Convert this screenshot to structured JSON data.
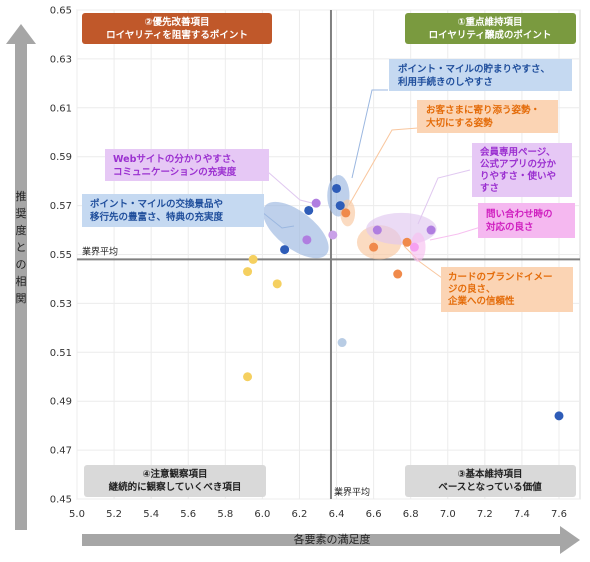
{
  "chart_data": {
    "type": "scatter",
    "xlabel": "各要素の満足度",
    "ylabel": "推奨度との相関",
    "xlim": [
      5.0,
      7.6
    ],
    "ylim": [
      0.45,
      0.65
    ],
    "x_ticks": [
      "5.0",
      "5.2",
      "5.4",
      "5.6",
      "5.8",
      "6.0",
      "6.2",
      "6.4",
      "6.6",
      "6.8",
      "7.0",
      "7.2",
      "7.4",
      "7.6"
    ],
    "y_ticks": [
      "0.45",
      "0.47",
      "0.49",
      "0.51",
      "0.53",
      "0.55",
      "0.57",
      "0.59",
      "0.61",
      "0.63",
      "0.65"
    ],
    "avg_x": 6.37,
    "avg_y": 0.548,
    "avg_label_h": "業界平均",
    "avg_label_v": "業界平均",
    "quadrants": [
      {
        "key": "q2",
        "line1": "②優先改善項目",
        "line2": "ロイヤリティを阻害するポイント",
        "color": "#c0582a",
        "text_color": "#ffffff"
      },
      {
        "key": "q1",
        "line1": "①重点維持項目",
        "line2": "ロイヤリティ醸成のポイント",
        "color": "#7a9a3f",
        "text_color": "#ffffff"
      },
      {
        "key": "q4",
        "line1": "④注意観察項目",
        "line2": "継続的に観察していくべき項目",
        "color": "#d9d9d9",
        "text_color": "#222222"
      },
      {
        "key": "q3",
        "line1": "③基本維持項目",
        "line2": "ベースとなっている価値",
        "color": "#d9d9d9",
        "text_color": "#222222"
      }
    ],
    "annotations": [
      {
        "key": "point-mile-save",
        "lines": [
          "ポイント・マイルの貯まりやすさ、",
          "利用手続きのしやすさ"
        ],
        "fill": "#c5d9f1",
        "text_color": "#1f4e9c"
      },
      {
        "key": "staff-attitude",
        "lines": [
          "お客さまに寄り添う姿勢・",
          "大切にする姿勢"
        ],
        "fill": "#fbd4b4",
        "text_color": "#e46c0a"
      },
      {
        "key": "web-site",
        "lines": [
          "Webサイトの分かりやすさ、",
          "コミュニケーションの充実度"
        ],
        "fill": "#e6c8f5",
        "text_color": "#9b30d0"
      },
      {
        "key": "member-page",
        "lines": [
          "会員専用ページ、",
          "公式アプリの分か",
          "りやすさ・使いや",
          "すさ"
        ],
        "fill": "#e6c8f5",
        "text_color": "#9b30d0"
      },
      {
        "key": "point-exchange",
        "lines": [
          "ポイント・マイルの交換景品や",
          "移行先の豊富さ、特典の充実度"
        ],
        "fill": "#c5d9f1",
        "text_color": "#1f4e9c"
      },
      {
        "key": "inquiry",
        "lines": [
          "問い合わせ時の",
          "対応の良さ"
        ],
        "fill": "#f5b8f0",
        "text_color": "#d020c0"
      },
      {
        "key": "brand-image",
        "lines": [
          "カードのブランドイメー",
          "ジの良さ、",
          "企業への信頼性"
        ],
        "fill": "#fbd4b4",
        "text_color": "#e46c0a"
      }
    ],
    "points": [
      {
        "x": 6.12,
        "y": 0.552,
        "color": "#2e5cb8"
      },
      {
        "x": 6.25,
        "y": 0.568,
        "color": "#2e5cb8"
      },
      {
        "x": 6.4,
        "y": 0.577,
        "color": "#2e5cb8"
      },
      {
        "x": 6.42,
        "y": 0.57,
        "color": "#2e5cb8"
      },
      {
        "x": 7.6,
        "y": 0.484,
        "color": "#2e5cb8"
      },
      {
        "x": 6.24,
        "y": 0.556,
        "color": "#b07ee0"
      },
      {
        "x": 6.29,
        "y": 0.571,
        "color": "#b07ee0"
      },
      {
        "x": 6.38,
        "y": 0.558,
        "color": "#c9a0e8"
      },
      {
        "x": 6.62,
        "y": 0.56,
        "color": "#b07ee0"
      },
      {
        "x": 6.91,
        "y": 0.56,
        "color": "#b07ee0"
      },
      {
        "x": 6.45,
        "y": 0.567,
        "color": "#f08a4b"
      },
      {
        "x": 6.6,
        "y": 0.553,
        "color": "#f08a4b"
      },
      {
        "x": 6.78,
        "y": 0.555,
        "color": "#f08a4b"
      },
      {
        "x": 6.73,
        "y": 0.542,
        "color": "#f08a4b"
      },
      {
        "x": 6.82,
        "y": 0.553,
        "color": "#f5a0f0"
      },
      {
        "x": 5.92,
        "y": 0.543,
        "color": "#f5d060"
      },
      {
        "x": 5.95,
        "y": 0.548,
        "color": "#f5d060"
      },
      {
        "x": 6.08,
        "y": 0.538,
        "color": "#f5d060"
      },
      {
        "x": 5.92,
        "y": 0.5,
        "color": "#f5d060"
      },
      {
        "x": 6.43,
        "y": 0.514,
        "color": "#b8cce4"
      }
    ],
    "ellipses": [
      {
        "cx": 6.18,
        "cy": 0.56,
        "rx": 0.1,
        "ry": 0.016,
        "angle": -52,
        "color": "#9bb7e0"
      },
      {
        "cx": 6.41,
        "cy": 0.574,
        "rx": 0.06,
        "ry": 0.0085,
        "angle": 0,
        "color": "#9bb7e0"
      },
      {
        "x_note": "orange",
        "cx": 6.63,
        "cy": 0.555,
        "rx": 0.12,
        "ry": 0.007,
        "angle": 0,
        "color": "#f9c79f"
      },
      {
        "cx": 6.75,
        "cy": 0.5605,
        "rx": 0.19,
        "ry": 0.0065,
        "angle": 0,
        "color": "#e0c8f0"
      },
      {
        "cx": 6.84,
        "cy": 0.553,
        "rx": 0.04,
        "ry": 0.006,
        "angle": 0,
        "color": "#f7c0f0"
      },
      {
        "cx": 6.46,
        "cy": 0.567,
        "rx": 0.04,
        "ry": 0.0055,
        "angle": 0,
        "color": "#f9c79f"
      }
    ]
  }
}
